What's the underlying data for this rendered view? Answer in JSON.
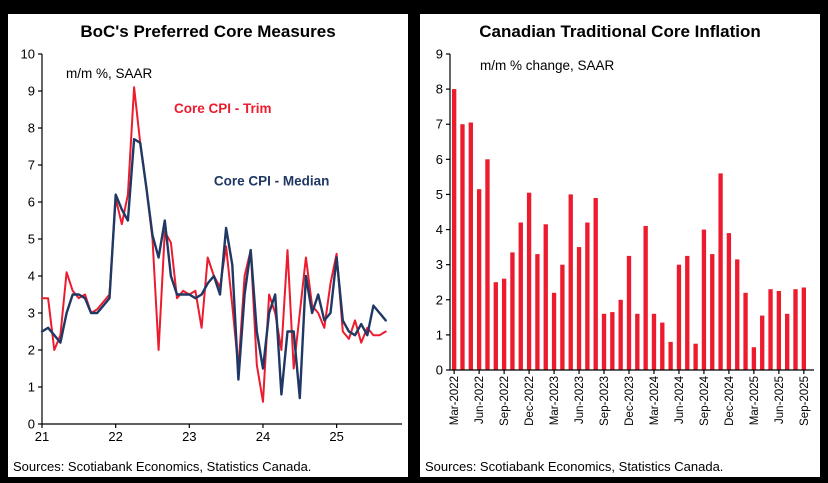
{
  "panels": {
    "left": {
      "source": "Sources: Scotiabank Economics, Statistics Canada."
    },
    "right": {
      "source": "Sources: Scotiabank Economics, Statistics Canada."
    }
  },
  "chart_data": [
    {
      "type": "line",
      "title": "BoC's Preferred Core Measures",
      "ylabel": "m/m %, SAAR",
      "ylim": [
        0,
        10
      ],
      "ytick_step": 1,
      "x_tick_labels": [
        "21",
        "22",
        "23",
        "24",
        "25"
      ],
      "x_tick_indices": [
        0,
        12,
        24,
        36,
        48
      ],
      "x_start": "Jan-2021",
      "frequency": "monthly",
      "grid": false,
      "legend": "inline-annotations",
      "series": [
        {
          "name": "Core CPI - Trim",
          "color": "#ed1b2e",
          "values": [
            3.4,
            3.4,
            2.0,
            2.4,
            4.1,
            3.6,
            3.4,
            3.5,
            3.0,
            3.1,
            3.3,
            3.5,
            6.1,
            5.4,
            6.2,
            9.1,
            7.6,
            6.4,
            5.0,
            2.0,
            5.2,
            4.9,
            3.4,
            3.6,
            3.5,
            3.6,
            2.6,
            4.5,
            4.0,
            3.7,
            4.8,
            3.2,
            1.5,
            4.0,
            4.7,
            1.6,
            0.6,
            3.5,
            3.0,
            2.0,
            4.7,
            1.5,
            3.0,
            4.5,
            3.2,
            3.0,
            2.6,
            3.8,
            4.6,
            2.5,
            2.3,
            2.8,
            2.2,
            2.6,
            2.4,
            2.4,
            2.5
          ]
        },
        {
          "name": "Core CPI - Median",
          "color": "#1f3864",
          "values": [
            2.5,
            2.6,
            2.4,
            2.2,
            3.0,
            3.5,
            3.5,
            3.4,
            3.0,
            3.0,
            3.2,
            3.4,
            6.2,
            5.8,
            5.5,
            7.7,
            7.6,
            6.4,
            5.1,
            4.5,
            5.5,
            4.0,
            3.5,
            3.5,
            3.5,
            3.4,
            3.5,
            3.8,
            4.0,
            3.5,
            5.3,
            4.3,
            1.2,
            3.5,
            4.7,
            2.5,
            1.5,
            3.0,
            3.5,
            0.8,
            2.5,
            2.5,
            0.7,
            4.0,
            3.0,
            3.5,
            2.8,
            3.0,
            4.5,
            2.8,
            2.5,
            2.4,
            2.7,
            2.4,
            3.2,
            3.0,
            2.8
          ]
        }
      ]
    },
    {
      "type": "bar",
      "title": "Canadian Traditional Core Inflation",
      "ylabel": "m/m % change, SAAR",
      "ylim": [
        0,
        9
      ],
      "ytick_step": 1,
      "bar_color": "#ed1b2e",
      "label_every": 3,
      "grid": false,
      "categories": [
        "Mar-2022",
        "Apr-2022",
        "May-2022",
        "Jun-2022",
        "Jul-2022",
        "Aug-2022",
        "Sep-2022",
        "Oct-2022",
        "Nov-2022",
        "Dec-2022",
        "Jan-2023",
        "Feb-2023",
        "Mar-2023",
        "Apr-2023",
        "May-2023",
        "Jun-2023",
        "Jul-2023",
        "Aug-2023",
        "Sep-2023",
        "Oct-2023",
        "Nov-2023",
        "Dec-2023",
        "Jan-2024",
        "Feb-2024",
        "Mar-2024",
        "Apr-2024",
        "May-2024",
        "Jun-2024",
        "Jul-2024",
        "Aug-2024",
        "Sep-2024",
        "Oct-2024",
        "Nov-2024",
        "Dec-2024",
        "Jan-2025",
        "Feb-2025",
        "Mar-2025",
        "Apr-2025",
        "May-2025",
        "Jun-2025",
        "Jul-2025",
        "Aug-2025",
        "Sep-2025"
      ],
      "values": [
        8.0,
        7.0,
        7.05,
        5.15,
        6.0,
        2.5,
        2.6,
        3.35,
        4.2,
        5.05,
        3.3,
        4.15,
        2.2,
        3.0,
        5.0,
        3.5,
        4.2,
        4.9,
        1.6,
        1.65,
        2.0,
        3.25,
        1.6,
        4.1,
        1.6,
        1.35,
        0.8,
        3.0,
        3.25,
        0.75,
        4.0,
        3.3,
        5.6,
        3.9,
        3.15,
        2.2,
        0.65,
        1.55,
        2.3,
        2.25,
        1.6,
        2.3,
        2.35
      ]
    }
  ]
}
